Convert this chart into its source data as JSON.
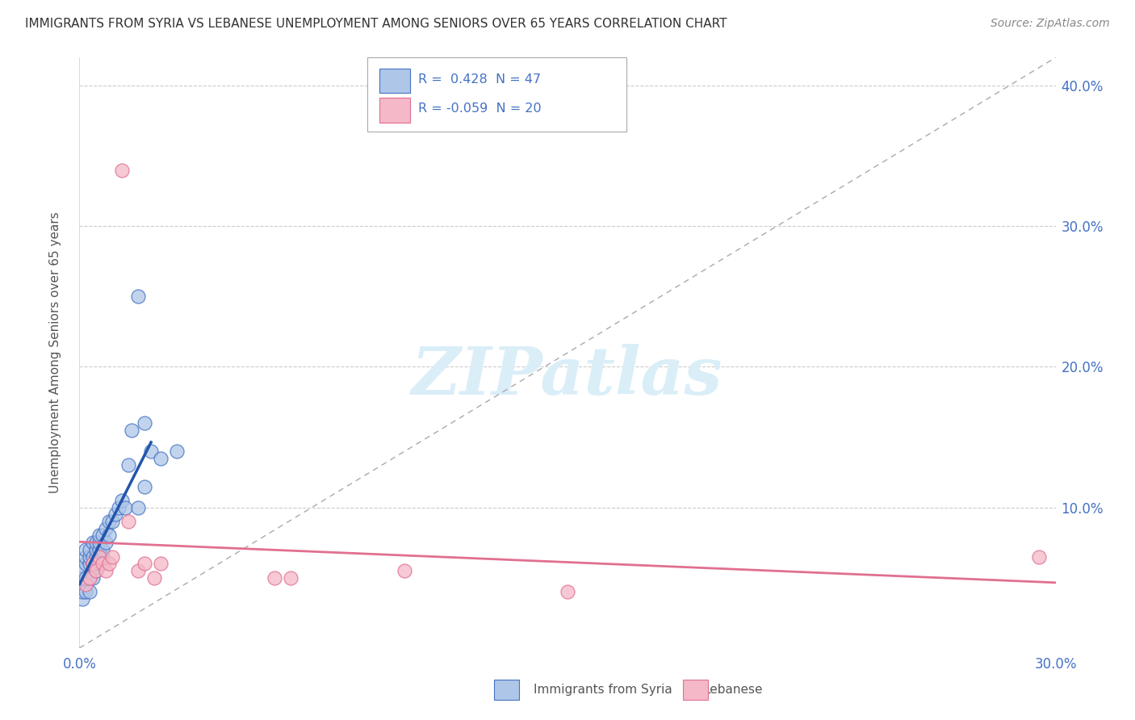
{
  "title": "IMMIGRANTS FROM SYRIA VS LEBANESE UNEMPLOYMENT AMONG SENIORS OVER 65 YEARS CORRELATION CHART",
  "source": "Source: ZipAtlas.com",
  "ylabel": "Unemployment Among Seniors over 65 years",
  "xlim": [
    0,
    0.3
  ],
  "ylim": [
    0,
    0.42
  ],
  "ytick_positions": [
    0.1,
    0.2,
    0.3,
    0.4
  ],
  "ytick_labels": [
    "10.0%",
    "20.0%",
    "30.0%",
    "40.0%"
  ],
  "xtick_positions": [
    0.0,
    0.3
  ],
  "xtick_labels": [
    "0.0%",
    "30.0%"
  ],
  "legend_labels": [
    "Immigrants from Syria",
    "Lebanese"
  ],
  "syria_color": "#aec6e8",
  "syria_edge_color": "#4472c4",
  "syria_line_color": "#2255aa",
  "lebanese_color": "#f4b8c8",
  "lebanese_edge_color": "#e07090",
  "lebanese_line_color": "#e07090",
  "ref_line_color": "#aaaaaa",
  "grid_color": "#cccccc",
  "background_color": "#ffffff",
  "watermark_color": "#daeef8",
  "syria_x": [
    0.001,
    0.001,
    0.001,
    0.001,
    0.002,
    0.002,
    0.002,
    0.002,
    0.002,
    0.003,
    0.003,
    0.003,
    0.003,
    0.003,
    0.004,
    0.004,
    0.004,
    0.004,
    0.005,
    0.005,
    0.005,
    0.005,
    0.006,
    0.006,
    0.006,
    0.006,
    0.007,
    0.007,
    0.007,
    0.008,
    0.008,
    0.009,
    0.009,
    0.01,
    0.011,
    0.012,
    0.013,
    0.014,
    0.015,
    0.016,
    0.018,
    0.02,
    0.022,
    0.025,
    0.03,
    0.018,
    0.02
  ],
  "syria_y": [
    0.035,
    0.04,
    0.05,
    0.055,
    0.04,
    0.05,
    0.06,
    0.065,
    0.07,
    0.04,
    0.05,
    0.06,
    0.065,
    0.07,
    0.05,
    0.06,
    0.065,
    0.075,
    0.055,
    0.065,
    0.07,
    0.075,
    0.06,
    0.07,
    0.075,
    0.08,
    0.065,
    0.07,
    0.08,
    0.075,
    0.085,
    0.08,
    0.09,
    0.09,
    0.095,
    0.1,
    0.105,
    0.1,
    0.13,
    0.155,
    0.25,
    0.16,
    0.14,
    0.135,
    0.14,
    0.1,
    0.115
  ],
  "lebanese_x": [
    0.002,
    0.003,
    0.004,
    0.005,
    0.006,
    0.007,
    0.008,
    0.009,
    0.01,
    0.013,
    0.015,
    0.018,
    0.02,
    0.023,
    0.025,
    0.06,
    0.065,
    0.1,
    0.15,
    0.295
  ],
  "lebanese_y": [
    0.045,
    0.05,
    0.06,
    0.055,
    0.065,
    0.06,
    0.055,
    0.06,
    0.065,
    0.34,
    0.09,
    0.055,
    0.06,
    0.05,
    0.06,
    0.05,
    0.05,
    0.055,
    0.04,
    0.065
  ]
}
